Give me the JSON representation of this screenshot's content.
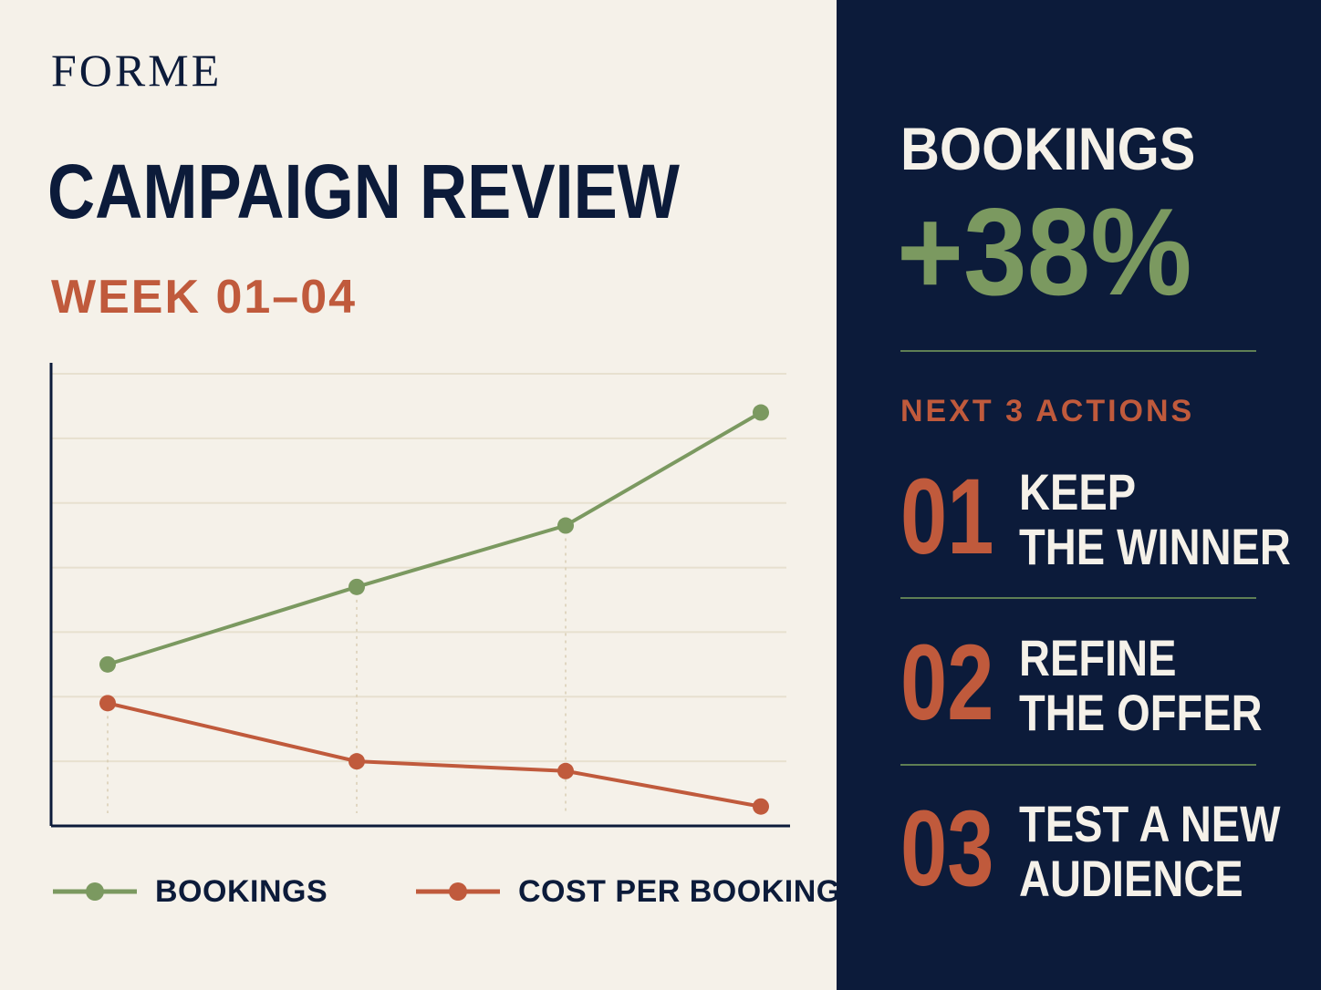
{
  "brand": "FORME",
  "title": "CAMPAIGN REVIEW",
  "subtitle": "WEEK 01–04",
  "kpi": {
    "label": "BOOKINGS",
    "value": "+38%"
  },
  "actions_title": "NEXT 3 ACTIONS",
  "actions": [
    {
      "number": "01",
      "line1": "KEEP",
      "line2": "THE WINNER"
    },
    {
      "number": "02",
      "line1": "REFINE",
      "line2": "THE OFFER"
    },
    {
      "number": "03",
      "line1": "TEST A NEW",
      "line2": "AUDIENCE"
    }
  ],
  "colors": {
    "navy": "#0c1b3a",
    "cream": "#f5f1e9",
    "green": "#7b9960",
    "rust": "#c05a3c"
  },
  "chart_data": {
    "type": "line",
    "x": [
      1,
      2,
      3,
      4
    ],
    "ylim": [
      0,
      7
    ],
    "grid": true,
    "legend_position": "bottom",
    "series": [
      {
        "name": "BOOKINGS",
        "color": "#7b9960",
        "values": [
          2.5,
          3.7,
          4.65,
          6.4
        ]
      },
      {
        "name": "COST PER BOOKING",
        "color": "#c05a3c",
        "values": [
          1.9,
          1.0,
          0.85,
          0.3
        ]
      }
    ]
  }
}
